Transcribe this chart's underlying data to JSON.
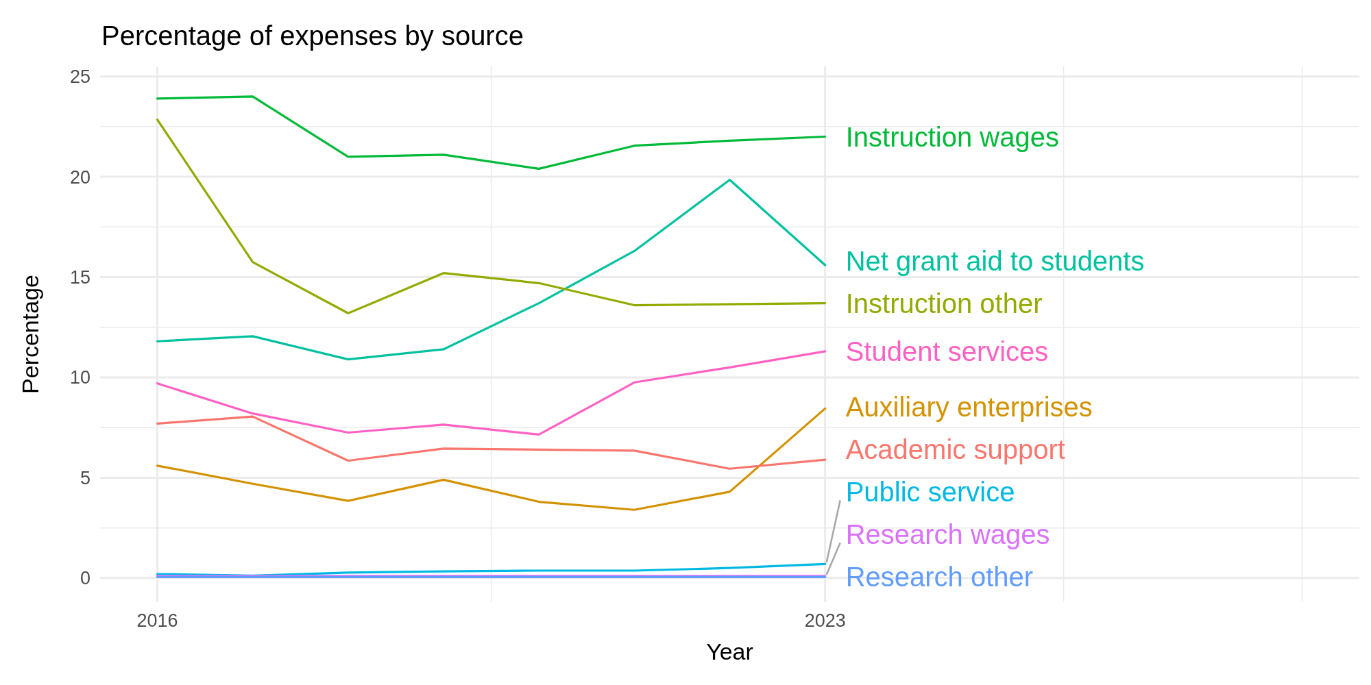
{
  "chart_data": {
    "type": "line",
    "title": "Percentage of expenses by source",
    "xlabel": "Year",
    "ylabel": "Percentage",
    "x": [
      2016,
      2017,
      2018,
      2019,
      2020,
      2021,
      2022,
      2023
    ],
    "xlim": [
      2015.4,
      2028.6
    ],
    "xticks": [
      2016,
      {
        "value": 2019.5,
        "label": null
      },
      2023,
      {
        "value": 2025.5,
        "label": null
      },
      {
        "value": 2028,
        "label": null
      }
    ],
    "ylim": [
      -1.2,
      25.5
    ],
    "yticks": [
      0,
      {
        "value": 2.5,
        "label": null
      },
      5,
      {
        "value": 7.5,
        "label": null
      },
      10,
      {
        "value": 12.5,
        "label": null
      },
      15,
      {
        "value": 17.5,
        "label": null
      },
      20,
      {
        "value": 22.5,
        "label": null
      },
      25
    ],
    "grid": true,
    "line_style": "solid",
    "marker": "none",
    "series": [
      {
        "name": "Instruction wages",
        "color": "#00ba38",
        "values": [
          23.9,
          24.0,
          21.0,
          21.1,
          20.4,
          21.55,
          21.8,
          22.0
        ]
      },
      {
        "name": "Net grant aid to students",
        "color": "#00c19f",
        "values": [
          11.8,
          12.05,
          10.9,
          11.4,
          13.7,
          16.3,
          19.85,
          15.6
        ]
      },
      {
        "name": "Instruction other",
        "color": "#93aa00",
        "values": [
          22.85,
          15.75,
          13.2,
          15.2,
          14.7,
          13.6,
          13.65,
          13.7
        ]
      },
      {
        "name": "Student services",
        "color": "#ff61c3",
        "values": [
          9.7,
          8.2,
          7.25,
          7.65,
          7.15,
          9.75,
          10.5,
          11.3
        ]
      },
      {
        "name": "Auxiliary enterprises",
        "color": "#d39200",
        "values": [
          5.6,
          4.7,
          3.85,
          4.9,
          3.8,
          3.4,
          4.3,
          8.45
        ]
      },
      {
        "name": "Academic support",
        "color": "#f8766d",
        "values": [
          7.7,
          8.05,
          5.85,
          6.45,
          6.4,
          6.35,
          5.45,
          5.9
        ]
      },
      {
        "name": "Public service",
        "color": "#00b9e3",
        "values": [
          0.2,
          0.12,
          0.27,
          0.33,
          0.37,
          0.37,
          0.5,
          0.7
        ]
      },
      {
        "name": "Research wages",
        "color": "#db72fb",
        "values": [
          0.1,
          0.1,
          0.1,
          0.1,
          0.1,
          0.1,
          0.1,
          0.1
        ]
      },
      {
        "name": "Research other",
        "color": "#619cff",
        "values": [
          0.05,
          0.05,
          0.05,
          0.05,
          0.05,
          0.05,
          0.05,
          0.05
        ]
      }
    ]
  }
}
